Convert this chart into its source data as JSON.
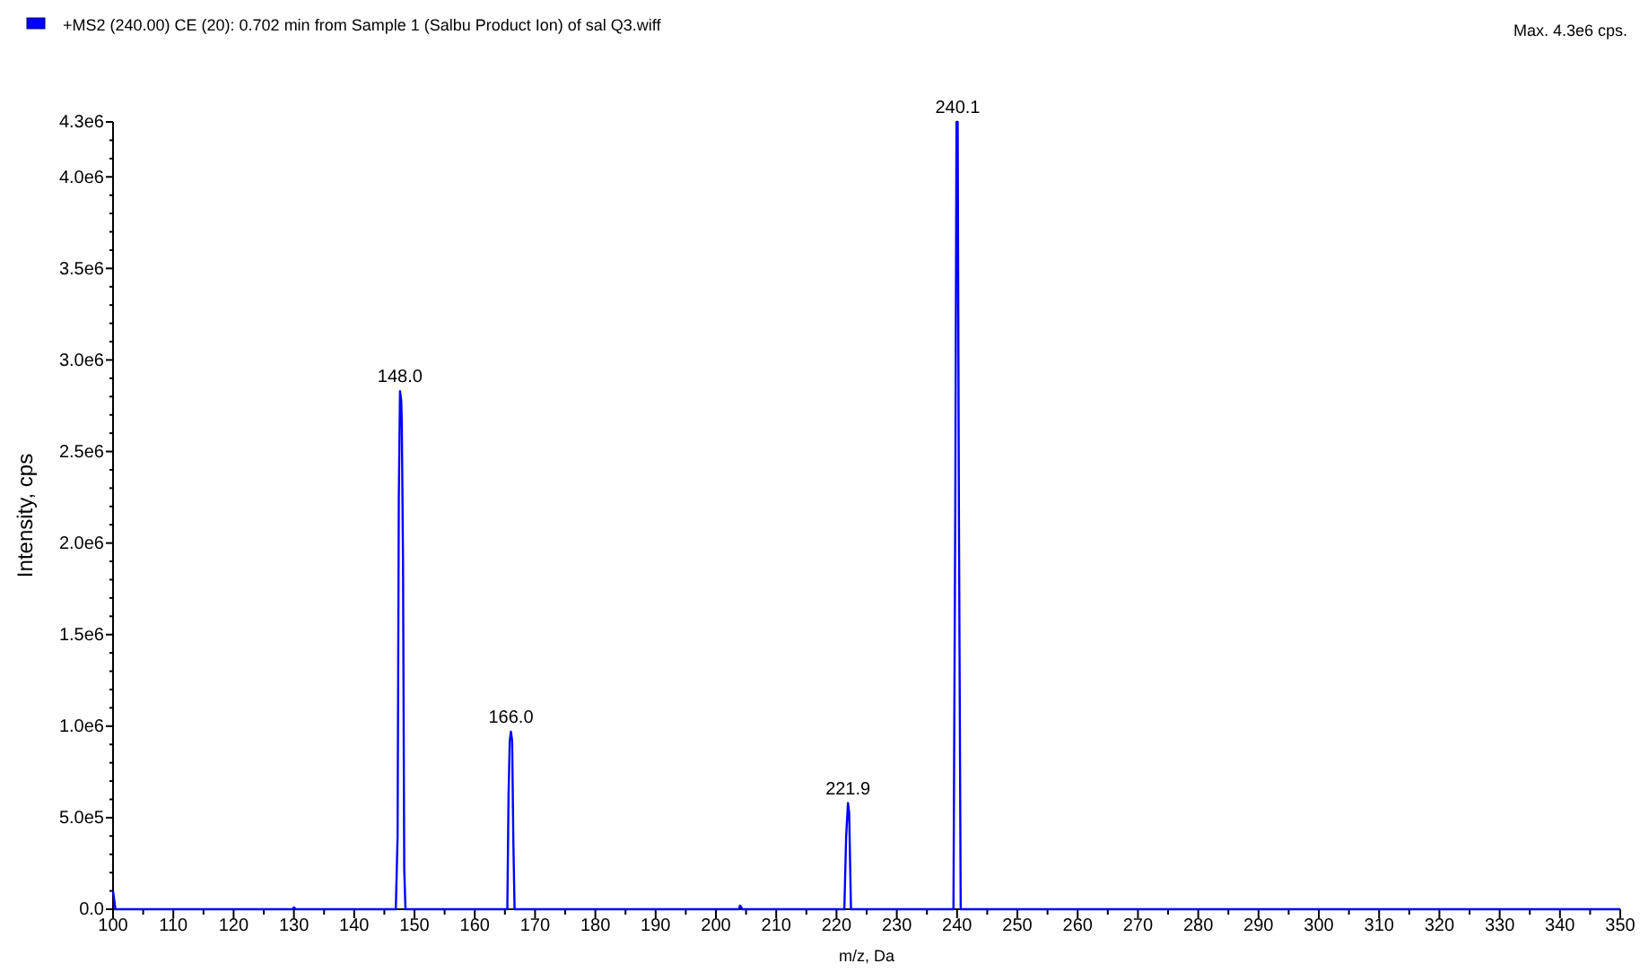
{
  "chart_data": {
    "type": "line",
    "xlabel": "m/z, Da",
    "ylabel": "Intensity, cps",
    "legend": "top left",
    "grid": false,
    "marker": "none",
    "line_style": "solid",
    "xlim": [
      100,
      350
    ],
    "ylim": [
      0,
      4300000
    ],
    "xticks": [
      100,
      {
        "value": 105,
        "label": null
      },
      110,
      {
        "value": 115,
        "label": null
      },
      120,
      {
        "value": 125,
        "label": null
      },
      130,
      {
        "value": 135,
        "label": null
      },
      140,
      {
        "value": 145,
        "label": null
      },
      150,
      {
        "value": 155,
        "label": null
      },
      160,
      {
        "value": 165,
        "label": null
      },
      170,
      {
        "value": 175,
        "label": null
      },
      180,
      {
        "value": 185,
        "label": null
      },
      190,
      {
        "value": 195,
        "label": null
      },
      200,
      {
        "value": 205,
        "label": null
      },
      210,
      {
        "value": 215,
        "label": null
      },
      220,
      {
        "value": 225,
        "label": null
      },
      230,
      {
        "value": 235,
        "label": null
      },
      240,
      {
        "value": 245,
        "label": null
      },
      250,
      {
        "value": 255,
        "label": null
      },
      260,
      {
        "value": 265,
        "label": null
      },
      270,
      {
        "value": 275,
        "label": null
      },
      280,
      {
        "value": 285,
        "label": null
      },
      290,
      {
        "value": 295,
        "label": null
      },
      300,
      {
        "value": 305,
        "label": null
      },
      310,
      {
        "value": 315,
        "label": null
      },
      320,
      {
        "value": 325,
        "label": null
      },
      330,
      {
        "value": 335,
        "label": null
      },
      340,
      {
        "value": 345,
        "label": null
      },
      350
    ],
    "yticks": [
      {
        "value": 0,
        "label": "0.0"
      },
      {
        "value": 100000,
        "label": null
      },
      {
        "value": 200000,
        "label": null
      },
      {
        "value": 300000,
        "label": null
      },
      {
        "value": 400000,
        "label": null
      },
      {
        "value": 500000,
        "label": "5.0e5"
      },
      {
        "value": 600000,
        "label": null
      },
      {
        "value": 700000,
        "label": null
      },
      {
        "value": 800000,
        "label": null
      },
      {
        "value": 900000,
        "label": null
      },
      {
        "value": 1000000,
        "label": "1.0e6"
      },
      {
        "value": 1100000,
        "label": null
      },
      {
        "value": 1200000,
        "label": null
      },
      {
        "value": 1300000,
        "label": null
      },
      {
        "value": 1400000,
        "label": null
      },
      {
        "value": 1500000,
        "label": "1.5e6"
      },
      {
        "value": 1600000,
        "label": null
      },
      {
        "value": 1700000,
        "label": null
      },
      {
        "value": 1800000,
        "label": null
      },
      {
        "value": 1900000,
        "label": null
      },
      {
        "value": 2000000,
        "label": "2.0e6"
      },
      {
        "value": 2100000,
        "label": null
      },
      {
        "value": 2200000,
        "label": null
      },
      {
        "value": 2300000,
        "label": null
      },
      {
        "value": 2400000,
        "label": null
      },
      {
        "value": 2500000,
        "label": "2.5e6"
      },
      {
        "value": 2600000,
        "label": null
      },
      {
        "value": 2700000,
        "label": null
      },
      {
        "value": 2800000,
        "label": null
      },
      {
        "value": 2900000,
        "label": null
      },
      {
        "value": 3000000,
        "label": "3.0e6"
      },
      {
        "value": 3100000,
        "label": null
      },
      {
        "value": 3200000,
        "label": null
      },
      {
        "value": 3300000,
        "label": null
      },
      {
        "value": 3400000,
        "label": null
      },
      {
        "value": 3500000,
        "label": "3.5e6"
      },
      {
        "value": 3600000,
        "label": null
      },
      {
        "value": 3700000,
        "label": null
      },
      {
        "value": 3800000,
        "label": null
      },
      {
        "value": 3900000,
        "label": null
      },
      {
        "value": 4000000,
        "label": "4.0e6"
      },
      {
        "value": 4100000,
        "label": null
      },
      {
        "value": 4200000,
        "label": null
      },
      {
        "value": 4300000,
        "label": "4.3e6"
      }
    ],
    "series": [
      {
        "name": "+MS2 (240.00) CE (20): 0.702 min from Sample 1 (Salbu Product Ion) of sal Q3.wiff",
        "color": "#0000ff",
        "x": [
          100,
          100.4,
          129.8,
          130,
          130.3,
          146.9,
          147.2,
          147.4,
          147.6,
          147.8,
          147.9,
          148.1,
          148.3,
          148.5,
          165.4,
          165.6,
          165.8,
          166.0,
          166.2,
          166.4,
          166.6,
          203.8,
          204,
          204.4,
          221.3,
          221.6,
          221.9,
          222.1,
          222.4,
          239.4,
          239.7,
          239.9,
          240.1,
          240.3,
          240.6,
          350
        ],
        "values": [
          100000,
          0,
          0,
          10000,
          0,
          0,
          400000,
          2250000,
          2830000,
          2780000,
          2650000,
          1900000,
          220000,
          0,
          0,
          620000,
          920000,
          970000,
          920000,
          370000,
          0,
          0,
          20000,
          0,
          0,
          400000,
          580000,
          530000,
          0,
          0,
          2200000,
          4300000,
          4300000,
          2200000,
          0,
          0
        ]
      }
    ],
    "annotations": [
      {
        "text": "148.0",
        "x": 147.6,
        "y": 2830000
      },
      {
        "text": "166.0",
        "x": 166.0,
        "y": 970000
      },
      {
        "text": "221.9",
        "x": 221.9,
        "y": 580000
      },
      {
        "text": "240.1",
        "x": 240.1,
        "y": 4300000
      },
      "Max. 4.3e6 cps."
    ]
  }
}
